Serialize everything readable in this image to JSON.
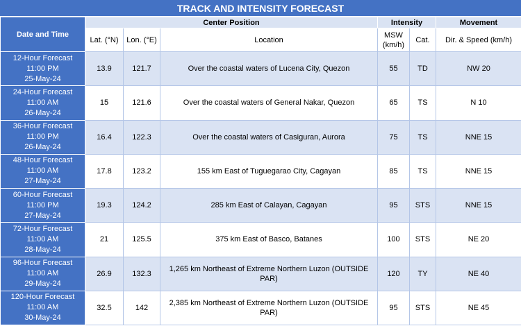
{
  "title": "TRACK AND INTENSITY FORECAST",
  "headers": {
    "date_time": "Date and Time",
    "center_position": "Center Position",
    "intensity": "Intensity",
    "movement": "Movement",
    "lat": "Lat. (°N)",
    "lon": "Lon. (°E)",
    "location": "Location",
    "msw": "MSW (km/h)",
    "cat": "Cat.",
    "dir_speed": "Dir. & Speed (km/h)"
  },
  "rows": [
    {
      "period": "12-Hour Forecast",
      "time": "11:00 PM",
      "date": "25-May-24",
      "lat": "13.9",
      "lon": "121.7",
      "location": "Over the coastal waters of Lucena City, Quezon",
      "msw": "55",
      "cat": "TD",
      "movement": "NW 20"
    },
    {
      "period": "24-Hour Forecast",
      "time": "11:00 AM",
      "date": "26-May-24",
      "lat": "15",
      "lon": "121.6",
      "location": "Over the coastal waters of General Nakar, Quezon",
      "msw": "65",
      "cat": "TS",
      "movement": "N 10"
    },
    {
      "period": "36-Hour Forecast",
      "time": "11:00 PM",
      "date": "26-May-24",
      "lat": "16.4",
      "lon": "122.3",
      "location": "Over the coastal waters of Casiguran, Aurora",
      "msw": "75",
      "cat": "TS",
      "movement": "NNE 15"
    },
    {
      "period": "48-Hour Forecast",
      "time": "11:00 AM",
      "date": "27-May-24",
      "lat": "17.8",
      "lon": "123.2",
      "location": "155 km East of Tuguegarao City, Cagayan",
      "msw": "85",
      "cat": "TS",
      "movement": "NNE 15"
    },
    {
      "period": "60-Hour Forecast",
      "time": "11:00 PM",
      "date": "27-May-24",
      "lat": "19.3",
      "lon": "124.2",
      "location": "285 km East of Calayan, Cagayan",
      "msw": "95",
      "cat": "STS",
      "movement": "NNE 15"
    },
    {
      "period": "72-Hour Forecast",
      "time": "11:00 AM",
      "date": "28-May-24",
      "lat": "21",
      "lon": "125.5",
      "location": "375 km East of Basco, Batanes",
      "msw": "100",
      "cat": "STS",
      "movement": "NE 20"
    },
    {
      "period": "96-Hour Forecast",
      "time": "11:00 AM",
      "date": "29-May-24",
      "lat": "26.9",
      "lon": "132.3",
      "location": "1,265 km Northeast of Extreme Northern Luzon (OUTSIDE PAR)",
      "msw": "120",
      "cat": "TY",
      "movement": "NE 40"
    },
    {
      "period": "120-Hour Forecast",
      "time": "11:00 AM",
      "date": "30-May-24",
      "lat": "32.5",
      "lon": "142",
      "location": "2,385 km Northeast of Extreme Northern Luzon (OUTSIDE PAR)",
      "msw": "95",
      "cat": "STS",
      "movement": "NE 45"
    }
  ]
}
